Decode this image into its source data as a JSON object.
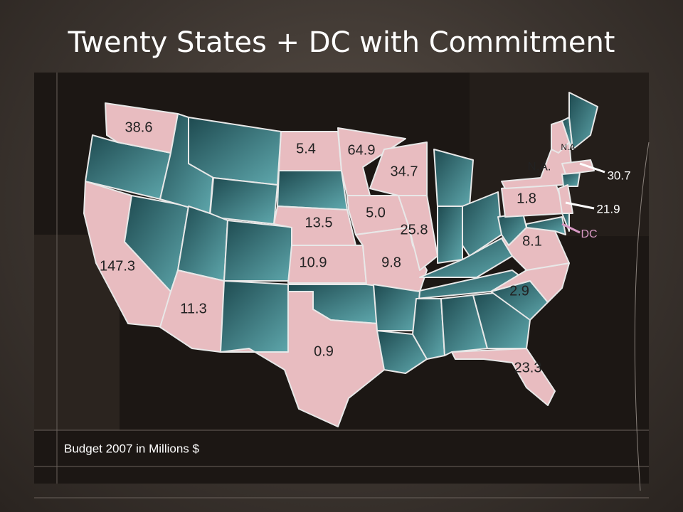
{
  "title": "Twenty States +  DC with Commitment",
  "caption": "Budget 2007 in Millions $",
  "labels": [
    "38.6",
    "5.4",
    "64.9",
    "34.7",
    "N.A.",
    "N.A.",
    "30.7",
    "1.8",
    "21.9",
    "DC",
    "13.5",
    "5.0",
    "25.8",
    "8.1",
    "147.3",
    "10.9",
    "9.8",
    "2.9",
    "11.3",
    "0.9",
    "23.3"
  ]
}
